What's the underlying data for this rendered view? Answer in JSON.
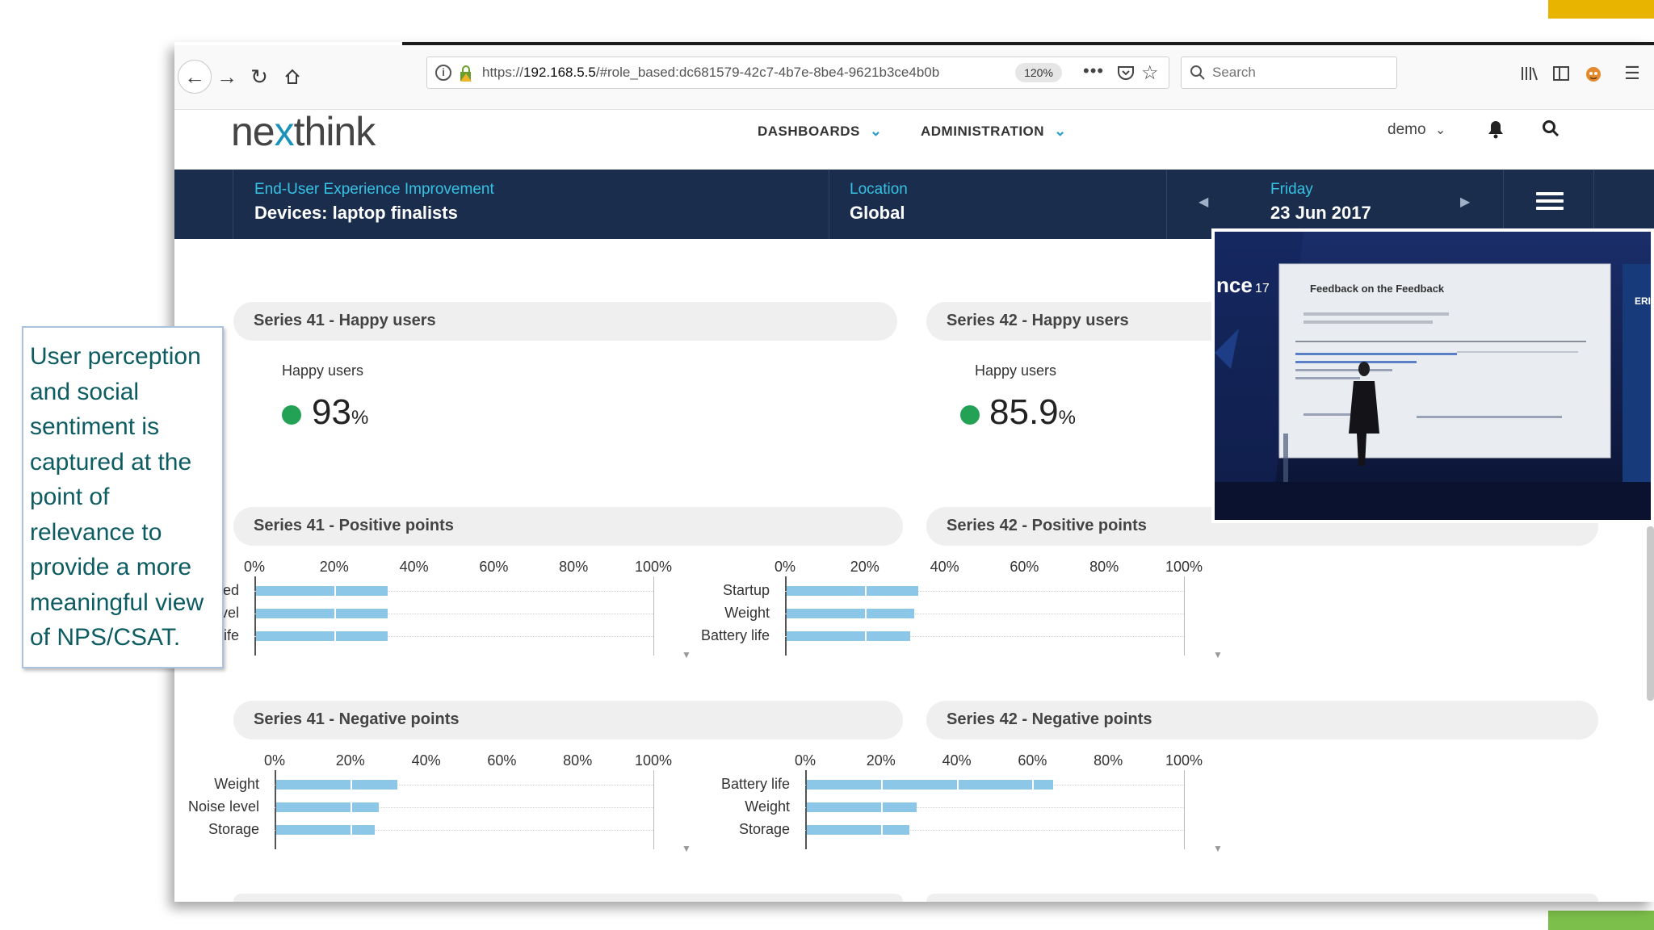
{
  "browser": {
    "url_prefix": "https://",
    "url_host": "192.168.5.5",
    "url_rest": "/#role_based:dc681579-42c7-4b7e-8be4-9621b3ce4b0b",
    "zoom": "120%",
    "search_placeholder": "Search"
  },
  "app": {
    "logo_pre": "ne",
    "logo_x": "x",
    "logo_post": "think",
    "nav": [
      {
        "label": "DASHBOARDS"
      },
      {
        "label": "ADMINISTRATION"
      }
    ],
    "user": "demo"
  },
  "context": {
    "dashboard_title": "End-User Experience Improvement",
    "dashboard_subtitle": "Devices: laptop finalists",
    "location_label": "Location",
    "location_value": "Global",
    "day": "Friday",
    "date": "23 Jun 2017"
  },
  "widgets": {
    "happy": [
      {
        "title": "Series 41 - Happy users",
        "label": "Happy users",
        "value": "93",
        "unit": "%"
      },
      {
        "title": "Series 42 - Happy users",
        "label": "Happy users",
        "value": "85.9",
        "unit": "%"
      }
    ],
    "positive_titles": [
      "Series 41 - Positive points",
      "Series 42 - Positive points"
    ],
    "negative_titles": [
      "Series 41 - Negative points",
      "Series 42 - Negative points"
    ]
  },
  "chart_data": [
    {
      "type": "bar",
      "title": "Series 41 - Positive points",
      "categories": [
        "Speed",
        "Noise level",
        "Battery life"
      ],
      "values": [
        33,
        33,
        33
      ],
      "xlim": [
        0,
        100
      ],
      "ticks": [
        "0%",
        "20%",
        "40%",
        "60%",
        "80%",
        "100%"
      ]
    },
    {
      "type": "bar",
      "title": "Series 42 - Positive points",
      "categories": [
        "Startup",
        "Weight",
        "Battery life"
      ],
      "values": [
        33,
        32,
        31
      ],
      "xlim": [
        0,
        100
      ],
      "ticks": [
        "0%",
        "20%",
        "40%",
        "60%",
        "80%",
        "100%"
      ]
    },
    {
      "type": "bar",
      "title": "Series 41 - Negative points",
      "categories": [
        "Weight",
        "Noise level",
        "Storage"
      ],
      "values": [
        32,
        27,
        26
      ],
      "xlim": [
        0,
        100
      ],
      "ticks": [
        "0%",
        "20%",
        "40%",
        "60%",
        "80%",
        "100%"
      ]
    },
    {
      "type": "bar",
      "title": "Series 42 - Negative points",
      "categories": [
        "Battery life",
        "Weight",
        "Storage"
      ],
      "values": [
        65,
        29,
        27
      ],
      "xlim": [
        0,
        100
      ],
      "ticks": [
        "0%",
        "20%",
        "40%",
        "60%",
        "80%",
        "100%"
      ]
    }
  ],
  "video": {
    "brand_fragment": "nce",
    "brand_year": "17",
    "slide_title": "Feedback on the Feedback",
    "right_edge_text": "ERI"
  },
  "callout": {
    "text": "User perception and social sentiment is captured at the point of relevance to provide a more meaningful view of NPS/CSAT."
  },
  "colors": {
    "context_bar": "#1b2d4d",
    "accent_teal": "#36c1e3",
    "bar": "#8cc7e8",
    "status_green": "#23a155",
    "callout_text": "#0c5c61"
  },
  "icons": [
    "back-icon",
    "forward-icon",
    "reload-icon",
    "home-icon",
    "info-icon",
    "lock-icon",
    "more-icon",
    "pocket-icon",
    "bookmark-star-icon",
    "search-icon",
    "library-icon",
    "sidebar-icon",
    "extension-icon",
    "menu-icon",
    "chevron-down-icon",
    "bell-icon",
    "hamburger-icon"
  ]
}
